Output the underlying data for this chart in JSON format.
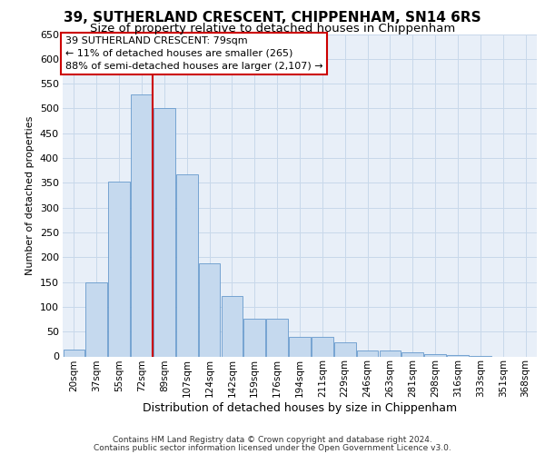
{
  "title1": "39, SUTHERLAND CRESCENT, CHIPPENHAM, SN14 6RS",
  "title2": "Size of property relative to detached houses in Chippenham",
  "xlabel": "Distribution of detached houses by size in Chippenham",
  "ylabel": "Number of detached properties",
  "categories": [
    "20sqm",
    "37sqm",
    "55sqm",
    "72sqm",
    "89sqm",
    "107sqm",
    "124sqm",
    "142sqm",
    "159sqm",
    "176sqm",
    "194sqm",
    "211sqm",
    "229sqm",
    "246sqm",
    "263sqm",
    "281sqm",
    "298sqm",
    "316sqm",
    "333sqm",
    "351sqm",
    "368sqm"
  ],
  "values": [
    14,
    150,
    353,
    528,
    500,
    368,
    188,
    122,
    76,
    76,
    40,
    40,
    28,
    12,
    12,
    9,
    4,
    2,
    1,
    0,
    0
  ],
  "bar_color": "#c5d9ee",
  "bar_edge_color": "#6699cc",
  "grid_color": "#c8d8ea",
  "bg_color": "#e8eff8",
  "red_line_x": 3.5,
  "annotation_line1": "39 SUTHERLAND CRESCENT: 79sqm",
  "annotation_line2": "← 11% of detached houses are smaller (265)",
  "annotation_line3": "88% of semi-detached houses are larger (2,107) →",
  "annotation_box_facecolor": "#ffffff",
  "annotation_border_color": "#cc0000",
  "footer1": "Contains HM Land Registry data © Crown copyright and database right 2024.",
  "footer2": "Contains public sector information licensed under the Open Government Licence v3.0.",
  "ylim_max": 650,
  "yticks": [
    0,
    50,
    100,
    150,
    200,
    250,
    300,
    350,
    400,
    450,
    500,
    550,
    600,
    650
  ],
  "title1_fontsize": 11,
  "title2_fontsize": 9.5,
  "ylabel_fontsize": 8,
  "xlabel_fontsize": 9,
  "tick_fontsize": 8,
  "xtick_fontsize": 7.5,
  "footer_fontsize": 6.5,
  "annot_fontsize": 8
}
